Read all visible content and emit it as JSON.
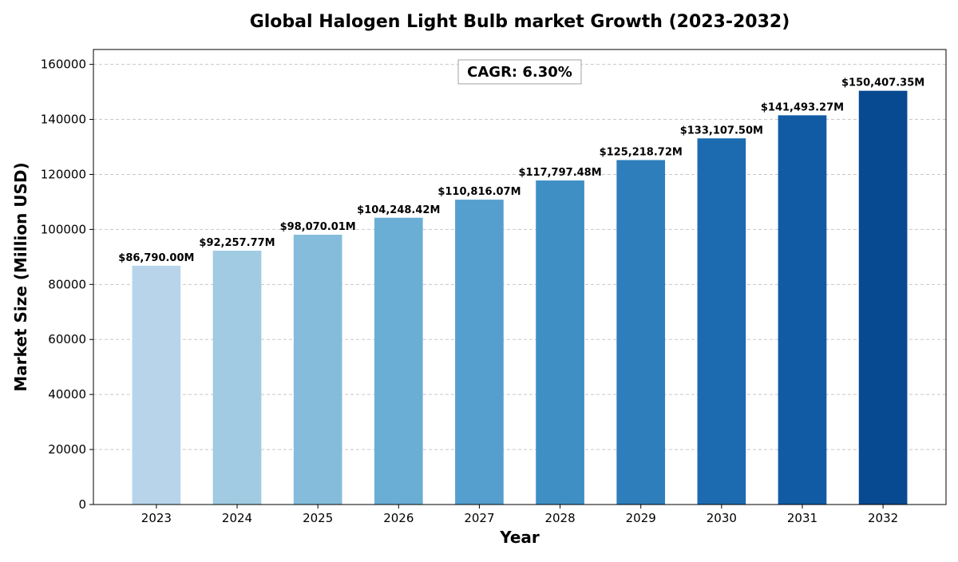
{
  "chart_data": {
    "type": "bar",
    "title": "Global Halogen Light Bulb market Growth (2023-2032)",
    "xlabel": "Year",
    "ylabel": "Market Size (Million USD)",
    "categories": [
      "2023",
      "2024",
      "2025",
      "2026",
      "2027",
      "2028",
      "2029",
      "2030",
      "2031",
      "2032"
    ],
    "values": [
      86790.0,
      92257.77,
      98070.01,
      104248.42,
      110816.07,
      117797.48,
      125218.72,
      133107.5,
      141493.27,
      150407.35
    ],
    "data_labels": [
      "$86,790.00M",
      "$92,257.77M",
      "$98,070.01M",
      "$104,248.42M",
      "$110,816.07M",
      "$117,797.48M",
      "$125,218.72M",
      "$133,107.50M",
      "$141,493.27M",
      "$150,407.35M"
    ],
    "bar_colors": [
      "#b7d4ea",
      "#a0cbe2",
      "#85bcdb",
      "#6aaed6",
      "#549fcd",
      "#3f8fc5",
      "#2e7ebc",
      "#1c6bb0",
      "#105ba4",
      "#084a91"
    ],
    "ylim": [
      0,
      165407.35
    ],
    "yticks": [
      0,
      20000,
      40000,
      60000,
      80000,
      100000,
      120000,
      140000,
      160000
    ],
    "grid": "y-dashed",
    "annotation": "CAGR: 6.30%"
  }
}
